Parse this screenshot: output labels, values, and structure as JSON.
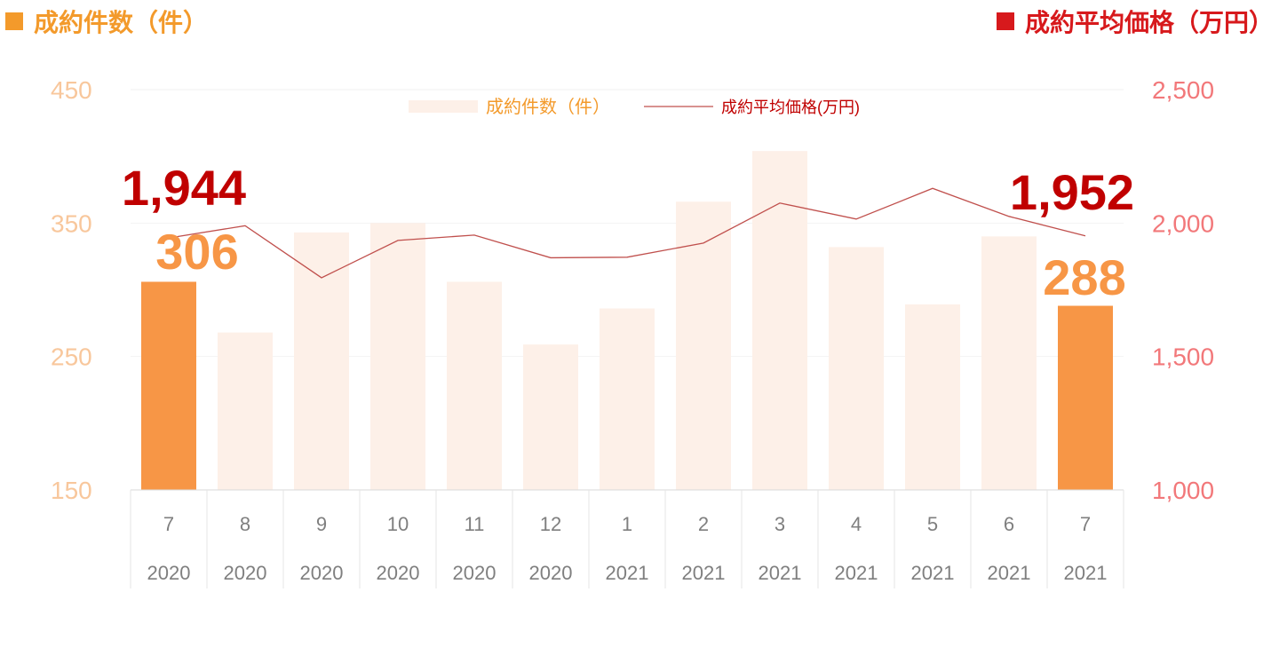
{
  "header": {
    "left_title": "成約件数（件）",
    "right_title": "成約平均価格（万円）"
  },
  "colors": {
    "count_accent": "#F39A2B",
    "price_accent": "#D7191C",
    "bar_highlight": "#F79646",
    "bar_faded": "#FDF0E8",
    "line": "#C0504D",
    "left_axis_text": "#F8C79C",
    "right_axis_text": "#F2787A",
    "callout_price": "#C00000",
    "callout_count": "#F79646",
    "category_text": "#7F7F7F",
    "grid": "#F2F2F2"
  },
  "chart_data": {
    "type": "bar+line",
    "categories": [
      {
        "month": "7",
        "year": "2020"
      },
      {
        "month": "8",
        "year": "2020"
      },
      {
        "month": "9",
        "year": "2020"
      },
      {
        "month": "10",
        "year": "2020"
      },
      {
        "month": "11",
        "year": "2020"
      },
      {
        "month": "12",
        "year": "2020"
      },
      {
        "month": "1",
        "year": "2021"
      },
      {
        "month": "2",
        "year": "2021"
      },
      {
        "month": "3",
        "year": "2021"
      },
      {
        "month": "4",
        "year": "2021"
      },
      {
        "month": "5",
        "year": "2021"
      },
      {
        "month": "6",
        "year": "2021"
      },
      {
        "month": "7",
        "year": "2021"
      }
    ],
    "series": [
      {
        "name": "成約件数（件）",
        "type": "bar",
        "axis": "left",
        "values": [
          306,
          268,
          343,
          350,
          306,
          259,
          286,
          366,
          404,
          332,
          289,
          340,
          288
        ],
        "highlighted": [
          0,
          12
        ]
      },
      {
        "name": "成約平均価格(万円)",
        "type": "line",
        "axis": "right",
        "values": [
          1944,
          1990,
          1795,
          1935,
          1955,
          1870,
          1872,
          1925,
          2075,
          2015,
          2130,
          2025,
          1952
        ]
      }
    ],
    "left_axis": {
      "min": 150,
      "max": 450,
      "ticks": [
        "150",
        "250",
        "350",
        "450"
      ]
    },
    "right_axis": {
      "min": 1000,
      "max": 2500,
      "ticks": [
        "1,000",
        "1,500",
        "2,000",
        "2,500"
      ]
    },
    "callouts": [
      {
        "series": 1,
        "index": 0,
        "label": "1,944"
      },
      {
        "series": 0,
        "index": 0,
        "label": "306"
      },
      {
        "series": 1,
        "index": 12,
        "label": "1,952"
      },
      {
        "series": 0,
        "index": 12,
        "label": "288"
      }
    ],
    "legend_position": "top-center",
    "grid": true
  }
}
